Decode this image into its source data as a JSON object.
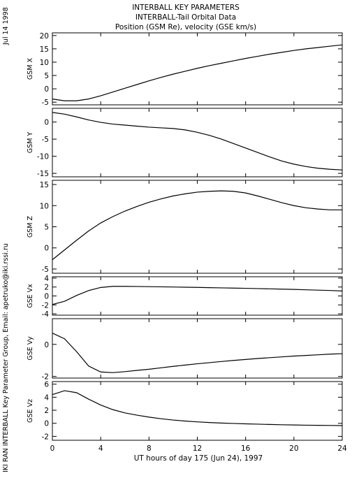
{
  "header": {
    "title_line1": "INTERBALL KEY PARAMETERS",
    "title_line2": "INTERBALL-Tail Orbital Data",
    "title_line3": "Position (GSM Re), velocity (GSE km/s)"
  },
  "side": {
    "date": "Jul 14 1998",
    "credit": "IKI RAN INTERBALL Key Parameter Group, Email: apetruko@iki.rssi.ru"
  },
  "chart_data": {
    "type": "line",
    "xlabel": "UT hours of day 175 (Jun 24), 1997",
    "xlim": [
      0,
      24
    ],
    "xticks": [
      0,
      4,
      8,
      12,
      16,
      20,
      24
    ],
    "x": [
      0,
      1,
      2,
      3,
      4,
      5,
      6,
      7,
      8,
      9,
      10,
      11,
      12,
      13,
      14,
      15,
      16,
      17,
      18,
      19,
      20,
      21,
      22,
      23,
      24
    ],
    "panels": [
      {
        "ylabel": "GSM X",
        "ylim": [
          -6,
          21
        ],
        "yticks": [
          -5,
          0,
          5,
          10,
          15,
          20
        ],
        "values": [
          -3.8,
          -4.5,
          -4.5,
          -3.8,
          -2.6,
          -1.2,
          0.2,
          1.6,
          3.0,
          4.3,
          5.5,
          6.6,
          7.7,
          8.7,
          9.6,
          10.5,
          11.4,
          12.2,
          13.0,
          13.7,
          14.4,
          15.0,
          15.5,
          16.0,
          16.5
        ]
      },
      {
        "ylabel": "GSM Y",
        "ylim": [
          -16,
          4
        ],
        "yticks": [
          -15,
          -10,
          -5,
          0
        ],
        "values": [
          2.8,
          2.3,
          1.5,
          0.6,
          -0.1,
          -0.6,
          -0.9,
          -1.2,
          -1.5,
          -1.7,
          -1.9,
          -2.3,
          -3.0,
          -3.9,
          -5.0,
          -6.3,
          -7.6,
          -8.9,
          -10.2,
          -11.4,
          -12.3,
          -13.0,
          -13.5,
          -13.8,
          -14.0
        ]
      },
      {
        "ylabel": "GSM Z",
        "ylim": [
          -6,
          16
        ],
        "yticks": [
          -5,
          0,
          5,
          10,
          15
        ],
        "values": [
          -2.8,
          -0.5,
          1.8,
          4.0,
          5.9,
          7.4,
          8.7,
          9.8,
          10.8,
          11.6,
          12.3,
          12.8,
          13.2,
          13.4,
          13.5,
          13.4,
          13.0,
          12.3,
          11.5,
          10.7,
          10.0,
          9.5,
          9.2,
          9.0,
          9.0
        ]
      },
      {
        "ylabel": "GSE Vx",
        "ylim": [
          -4.3,
          4.3
        ],
        "yticks": [
          -4,
          -2,
          0,
          2,
          4
        ],
        "values": [
          -1.9,
          -1.2,
          0.1,
          1.2,
          1.9,
          2.15,
          2.15,
          2.12,
          2.08,
          2.04,
          2.0,
          1.96,
          1.91,
          1.86,
          1.81,
          1.76,
          1.71,
          1.65,
          1.59,
          1.53,
          1.46,
          1.38,
          1.3,
          1.22,
          1.12
        ]
      },
      {
        "ylabel": "GSE Vy",
        "ylim": [
          -2.1,
          1.6
        ],
        "yticks": [
          -2,
          0
        ],
        "values": [
          0.7,
          0.35,
          -0.45,
          -1.35,
          -1.72,
          -1.76,
          -1.7,
          -1.62,
          -1.55,
          -1.46,
          -1.37,
          -1.29,
          -1.21,
          -1.14,
          -1.07,
          -1.0,
          -0.94,
          -0.88,
          -0.83,
          -0.78,
          -0.73,
          -0.69,
          -0.65,
          -0.61,
          -0.58
        ]
      },
      {
        "ylabel": "GSE Vz",
        "ylim": [
          -2.6,
          6.4
        ],
        "yticks": [
          -2,
          0,
          2,
          4,
          6
        ],
        "values": [
          4.4,
          5.0,
          4.7,
          3.7,
          2.8,
          2.1,
          1.6,
          1.25,
          0.95,
          0.7,
          0.5,
          0.35,
          0.22,
          0.12,
          0.04,
          -0.02,
          -0.08,
          -0.13,
          -0.18,
          -0.22,
          -0.26,
          -0.29,
          -0.31,
          -0.33,
          -0.35
        ]
      }
    ]
  }
}
